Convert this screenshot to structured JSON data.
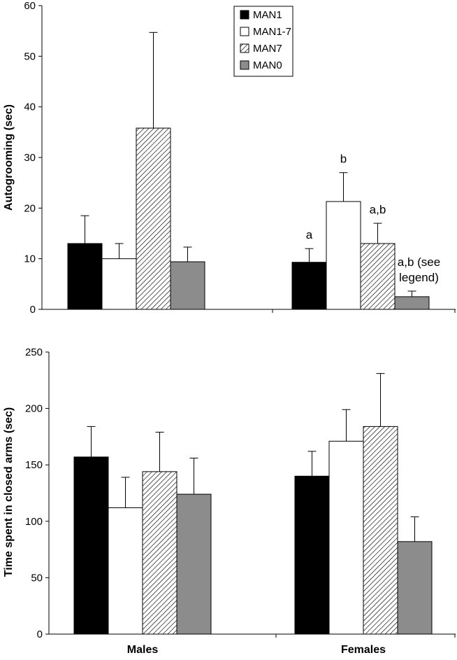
{
  "chart_data": [
    {
      "type": "bar",
      "title": "",
      "xlabel": "",
      "ylabel": "Autogrooming (sec)",
      "ylim": [
        0,
        60
      ],
      "yticks": [
        0,
        10,
        20,
        30,
        40,
        50,
        60
      ],
      "categories": [
        "Males",
        "Females"
      ],
      "series": [
        {
          "name": "MAN1",
          "key": "man1",
          "values": [
            13.0,
            9.3
          ],
          "errors": [
            5.5,
            2.7
          ]
        },
        {
          "name": "MAN1-7",
          "key": "man17",
          "values": [
            10.0,
            21.3
          ],
          "errors": [
            3.0,
            5.7
          ]
        },
        {
          "name": "MAN7",
          "key": "man7",
          "values": [
            35.8,
            13.0
          ],
          "errors": [
            18.9,
            4.0
          ]
        },
        {
          "name": "MAN0",
          "key": "man0",
          "values": [
            9.4,
            2.5
          ],
          "errors": [
            2.9,
            1.1
          ]
        }
      ],
      "annotations": [
        {
          "series": 0,
          "category": 1,
          "lines": [
            "a"
          ]
        },
        {
          "series": 1,
          "category": 1,
          "lines": [
            "b"
          ]
        },
        {
          "series": 2,
          "category": 1,
          "lines": [
            "a,b"
          ]
        },
        {
          "series": 3,
          "category": 1,
          "lines": [
            "a,b (see",
            "legend)"
          ]
        }
      ],
      "legend": [
        "MAN1",
        "MAN1-7",
        "MAN7",
        "MAN0"
      ],
      "legend_position": "top-center",
      "grid": false
    },
    {
      "type": "bar",
      "title": "",
      "xlabel": "",
      "ylabel": "Time spent in closed arms (sec)",
      "ylim": [
        0,
        250
      ],
      "yticks": [
        0,
        50,
        100,
        150,
        200,
        250
      ],
      "categories": [
        "Males",
        "Females"
      ],
      "series": [
        {
          "name": "MAN1",
          "key": "man1",
          "values": [
            157,
            140
          ],
          "errors": [
            27,
            22
          ]
        },
        {
          "name": "MAN1-7",
          "key": "man17",
          "values": [
            112,
            171
          ],
          "errors": [
            27,
            28
          ]
        },
        {
          "name": "MAN7",
          "key": "man7",
          "values": [
            144,
            184
          ],
          "errors": [
            35,
            47
          ]
        },
        {
          "name": "MAN0",
          "key": "man0",
          "values": [
            124,
            82
          ],
          "errors": [
            32,
            22
          ]
        }
      ],
      "annotations": [],
      "grid": false
    }
  ],
  "colors": {
    "man1": "#000000",
    "man17": "#ffffff",
    "man7": "hatch",
    "man0": "#8c8c8c"
  }
}
